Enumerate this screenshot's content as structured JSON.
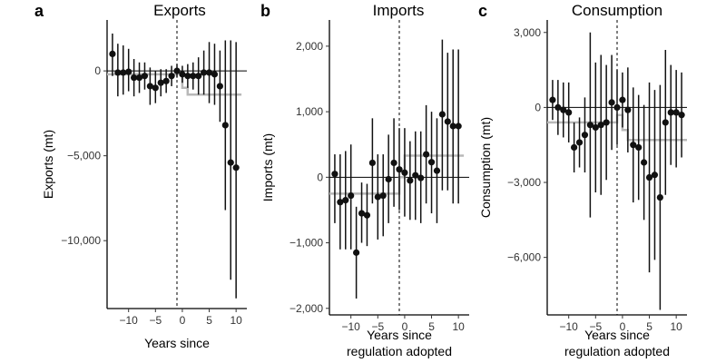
{
  "chart_data": [
    {
      "type": "scatter",
      "panel_label": "a",
      "title": "Exports",
      "xlabel": [
        "Years since"
      ],
      "ylabel": "Exports (mt)",
      "xlim": [
        -14,
        12
      ],
      "ylim": [
        -14000,
        3000
      ],
      "xticks": [
        -10,
        -5,
        0,
        5,
        10
      ],
      "xtick_labels": [
        "−10",
        "−5",
        "0",
        "5",
        "10"
      ],
      "yticks": [
        -10000,
        -5000,
        0
      ],
      "ytick_labels": [
        "−10,000",
        "−5,000",
        "0"
      ],
      "points": [
        {
          "x": -13,
          "y": 1000,
          "lo": -300,
          "hi": 2200
        },
        {
          "x": -12,
          "y": -100,
          "lo": -1500,
          "hi": 1600
        },
        {
          "x": -11,
          "y": -100,
          "lo": -1400,
          "hi": 1500
        },
        {
          "x": -10,
          "y": -50,
          "lo": -1200,
          "hi": 1300
        },
        {
          "x": -9,
          "y": -400,
          "lo": -1500,
          "hi": 700
        },
        {
          "x": -8,
          "y": -400,
          "lo": -1300,
          "hi": 500
        },
        {
          "x": -7,
          "y": -300,
          "lo": -1100,
          "hi": 500
        },
        {
          "x": -6,
          "y": -900,
          "lo": -2000,
          "hi": 200
        },
        {
          "x": -5,
          "y": -1000,
          "lo": -1900,
          "hi": 0
        },
        {
          "x": -4,
          "y": -700,
          "lo": -1500,
          "hi": 100
        },
        {
          "x": -3,
          "y": -600,
          "lo": -1300,
          "hi": 100
        },
        {
          "x": -2,
          "y": -300,
          "lo": -900,
          "hi": 300
        },
        {
          "x": -1,
          "y": 0,
          "lo": -400,
          "hi": 400
        },
        {
          "x": 0,
          "y": -200,
          "lo": -700,
          "hi": 300
        },
        {
          "x": 1,
          "y": -300,
          "lo": -1000,
          "hi": 400
        },
        {
          "x": 2,
          "y": -300,
          "lo": -1100,
          "hi": 500
        },
        {
          "x": 3,
          "y": -300,
          "lo": -1400,
          "hi": 800
        },
        {
          "x": 4,
          "y": -100,
          "lo": -1400,
          "hi": 1200
        },
        {
          "x": 5,
          "y": -100,
          "lo": -1900,
          "hi": 1700
        },
        {
          "x": 6,
          "y": -200,
          "lo": -2000,
          "hi": 1600
        },
        {
          "x": 7,
          "y": -900,
          "lo": -3000,
          "hi": 1200
        },
        {
          "x": 8,
          "y": -3200,
          "lo": -8200,
          "hi": 1800
        },
        {
          "x": 9,
          "y": -5400,
          "lo": -12300,
          "hi": 1800
        },
        {
          "x": 10,
          "y": -5700,
          "lo": -13400,
          "hi": 1700
        }
      ],
      "step_lines": [
        {
          "x": [
            -14,
            -1,
            -1,
            0,
            0,
            1,
            1,
            11
          ],
          "y": [
            -200,
            -200,
            -150,
            -150,
            -1000,
            -1000,
            -1400,
            -1400
          ]
        }
      ],
      "vline_x": -1,
      "hline_y": 0
    },
    {
      "type": "scatter",
      "panel_label": "b",
      "title": "Imports",
      "xlabel": [
        "Years since",
        "regulation adopted"
      ],
      "ylabel": "Imports (mt)",
      "xlim": [
        -14,
        12
      ],
      "ylim": [
        -2100,
        2400
      ],
      "xticks": [
        -10,
        -5,
        0,
        5,
        10
      ],
      "xtick_labels": [
        "−10",
        "−5",
        "0",
        "5",
        "10"
      ],
      "yticks": [
        -2000,
        -1000,
        0,
        1000,
        2000
      ],
      "ytick_labels": [
        "−2,000",
        "−1,000",
        "0",
        "1,000",
        "2,000"
      ],
      "points": [
        {
          "x": -13,
          "y": 50,
          "lo": -700,
          "hi": 350
        },
        {
          "x": -12,
          "y": -380,
          "lo": -1100,
          "hi": 350
        },
        {
          "x": -11,
          "y": -350,
          "lo": -1100,
          "hi": 400
        },
        {
          "x": -10,
          "y": -280,
          "lo": -1100,
          "hi": 500
        },
        {
          "x": -9,
          "y": -1150,
          "lo": -1850,
          "hi": -450
        },
        {
          "x": -8,
          "y": -550,
          "lo": -1000,
          "hi": -80
        },
        {
          "x": -7,
          "y": -580,
          "lo": -1050,
          "hi": -100
        },
        {
          "x": -6,
          "y": 220,
          "lo": -400,
          "hi": 900
        },
        {
          "x": -5,
          "y": -300,
          "lo": -950,
          "hi": 350
        },
        {
          "x": -4,
          "y": -280,
          "lo": -900,
          "hi": 350
        },
        {
          "x": -3,
          "y": -30,
          "lo": -700,
          "hi": 650
        },
        {
          "x": -2,
          "y": 220,
          "lo": -450,
          "hi": 900
        },
        {
          "x": -1,
          "y": 120,
          "lo": -500,
          "hi": 750
        },
        {
          "x": 0,
          "y": 70,
          "lo": -600,
          "hi": 750
        },
        {
          "x": 1,
          "y": -50,
          "lo": -650,
          "hi": 550
        },
        {
          "x": 2,
          "y": 30,
          "lo": -650,
          "hi": 700
        },
        {
          "x": 3,
          "y": -10,
          "lo": -700,
          "hi": 700
        },
        {
          "x": 4,
          "y": 350,
          "lo": -400,
          "hi": 1100
        },
        {
          "x": 5,
          "y": 230,
          "lo": -550,
          "hi": 1000
        },
        {
          "x": 6,
          "y": 100,
          "lo": -700,
          "hi": 900
        },
        {
          "x": 7,
          "y": 960,
          "lo": -200,
          "hi": 2100
        },
        {
          "x": 8,
          "y": 850,
          "lo": -200,
          "hi": 1900
        },
        {
          "x": 9,
          "y": 780,
          "lo": -400,
          "hi": 1950
        },
        {
          "x": 10,
          "y": 780,
          "lo": -400,
          "hi": 1950
        }
      ],
      "step_lines": [
        {
          "x": [
            -14,
            -1,
            -1,
            0,
            0,
            11
          ],
          "y": [
            -250,
            -250,
            0,
            0,
            330,
            330
          ]
        }
      ],
      "vline_x": -1,
      "hline_y": 0
    },
    {
      "type": "scatter",
      "panel_label": "c",
      "title": "Consumption",
      "xlabel": [
        "Years since",
        "regulation adopted"
      ],
      "ylabel": "Consumption (mt)",
      "xlim": [
        -14,
        12
      ],
      "ylim": [
        -8300,
        3500
      ],
      "xticks": [
        -10,
        -5,
        0,
        5,
        10
      ],
      "xtick_labels": [
        "−10",
        "−5",
        "0",
        "5",
        "10"
      ],
      "yticks": [
        -6000,
        -3000,
        0,
        3000
      ],
      "ytick_labels": [
        "−6,000",
        "−3,000",
        "0",
        "3,000"
      ],
      "points": [
        {
          "x": -13,
          "y": 300,
          "lo": -500,
          "hi": 1100
        },
        {
          "x": -12,
          "y": 0,
          "lo": -1100,
          "hi": 1100
        },
        {
          "x": -11,
          "y": -100,
          "lo": -1200,
          "hi": 1000
        },
        {
          "x": -10,
          "y": -200,
          "lo": -1400,
          "hi": 1000
        },
        {
          "x": -9,
          "y": -1600,
          "lo": -2600,
          "hi": -600
        },
        {
          "x": -8,
          "y": -1400,
          "lo": -2400,
          "hi": -400
        },
        {
          "x": -7,
          "y": -1100,
          "lo": -2600,
          "hi": 400
        },
        {
          "x": -6,
          "y": -700,
          "lo": -4400,
          "hi": 3000
        },
        {
          "x": -5,
          "y": -800,
          "lo": -3400,
          "hi": 1800
        },
        {
          "x": -4,
          "y": -700,
          "lo": -3500,
          "hi": 2100
        },
        {
          "x": -3,
          "y": -600,
          "lo": -2900,
          "hi": 1700
        },
        {
          "x": -2,
          "y": 200,
          "lo": -1700,
          "hi": 2100
        },
        {
          "x": -1,
          "y": 0,
          "lo": -1500,
          "hi": 1500
        },
        {
          "x": 0,
          "y": 300,
          "lo": -800,
          "hi": 1400
        },
        {
          "x": 1,
          "y": -100,
          "lo": -1800,
          "hi": 1600
        },
        {
          "x": 2,
          "y": -1500,
          "lo": -3800,
          "hi": 800
        },
        {
          "x": 3,
          "y": -1600,
          "lo": -3700,
          "hi": 500
        },
        {
          "x": 4,
          "y": -2200,
          "lo": -4500,
          "hi": 100
        },
        {
          "x": 5,
          "y": -2800,
          "lo": -6600,
          "hi": 1000
        },
        {
          "x": 6,
          "y": -2700,
          "lo": -6100,
          "hi": 700
        },
        {
          "x": 7,
          "y": -3600,
          "lo": -8100,
          "hi": 900
        },
        {
          "x": 8,
          "y": -600,
          "lo": -3500,
          "hi": 2300
        },
        {
          "x": 9,
          "y": -200,
          "lo": -2300,
          "hi": 1700
        },
        {
          "x": 10,
          "y": -200,
          "lo": -2400,
          "hi": 1500
        },
        {
          "x": 11,
          "y": -300,
          "lo": -2000,
          "hi": 1400
        }
      ],
      "step_lines": [
        {
          "x": [
            -14,
            -1,
            -1,
            0,
            0,
            1,
            1,
            12
          ],
          "y": [
            -600,
            -600,
            -300,
            -300,
            -900,
            -900,
            -1300,
            -1300
          ]
        }
      ],
      "vline_x": -1,
      "hline_y": 0
    }
  ]
}
